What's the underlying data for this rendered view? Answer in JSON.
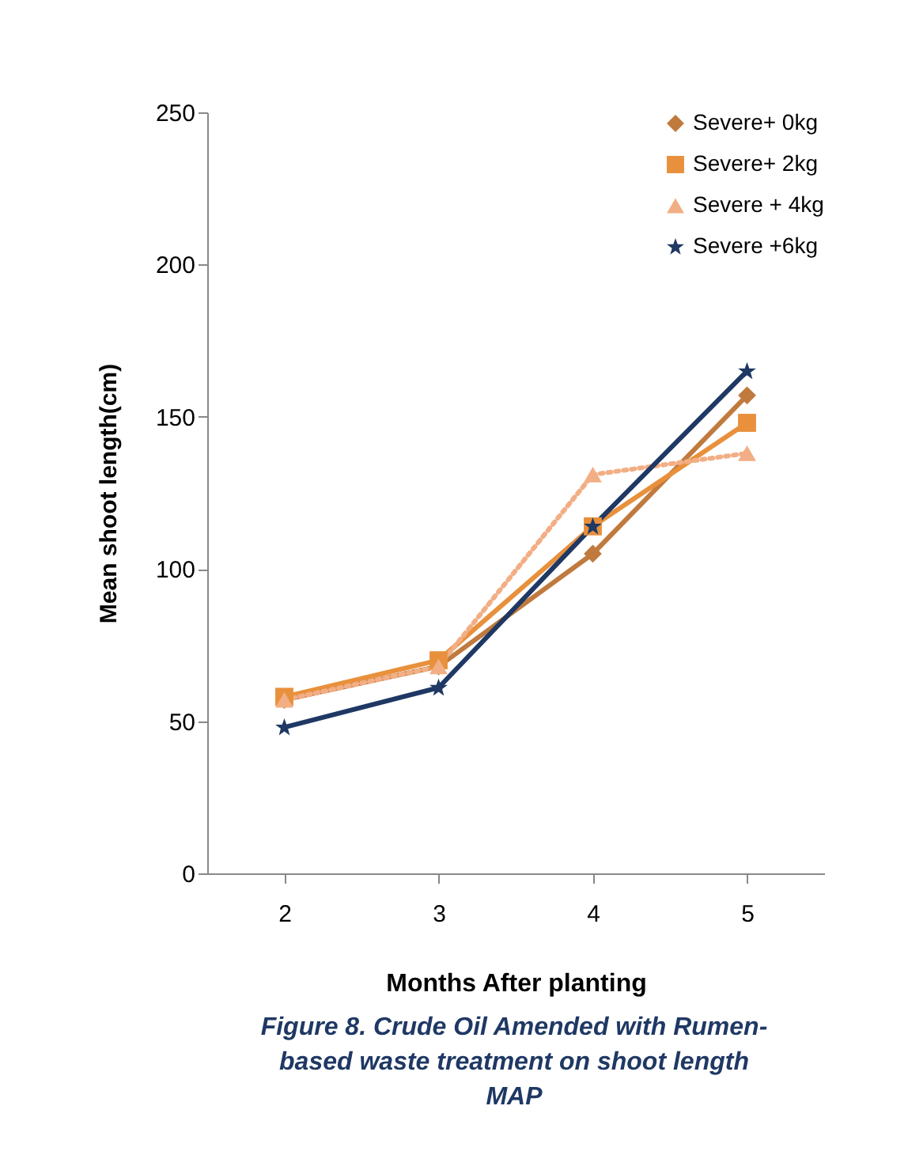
{
  "chart_data": {
    "type": "line",
    "xlabel": "Months After planting",
    "ylabel": "Mean shoot  length(cm)",
    "categories": [
      "2",
      "3",
      "4",
      "5"
    ],
    "series": [
      {
        "name": "Severe+ 0kg",
        "color": "#c07a3e",
        "marker": "diamond",
        "line_style": "solid",
        "values": [
          57,
          68,
          105,
          157
        ]
      },
      {
        "name": "Severe+ 2kg",
        "color": "#e8903c",
        "marker": "square",
        "line_style": "solid",
        "values": [
          58,
          70,
          114,
          148
        ]
      },
      {
        "name": "Severe + 4kg",
        "color": "#f2ae84",
        "marker": "triangle",
        "line_style": "dotted",
        "values": [
          57,
          68,
          131,
          138
        ]
      },
      {
        "name": "Severe +6kg",
        "color": "#1f3864",
        "marker": "star",
        "line_style": "solid",
        "values": [
          48,
          61,
          114,
          165
        ]
      }
    ],
    "ylim": [
      0,
      250
    ],
    "yticks": [
      0,
      50,
      100,
      150,
      200,
      250
    ],
    "grid": false,
    "legend": "top right",
    "annotations": [
      "Figure 8. Crude Oil Amended  with Rumen-based waste treatment  on shoot length MAP"
    ]
  }
}
